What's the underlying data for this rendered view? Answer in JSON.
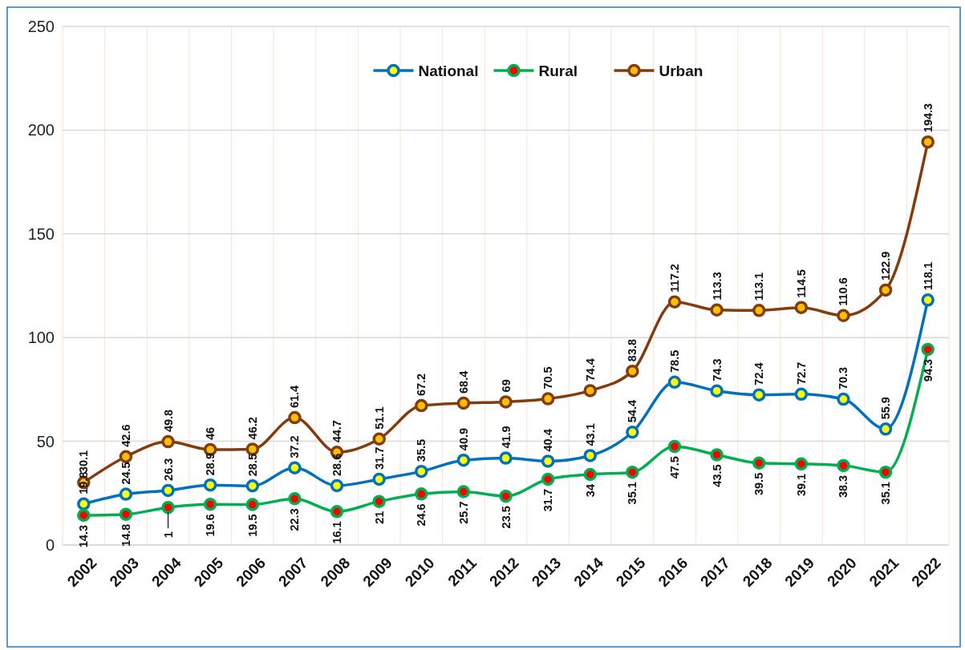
{
  "chart_data": {
    "type": "line",
    "categories": [
      "2002",
      "2003",
      "2004",
      "2005",
      "2006",
      "2007",
      "2008",
      "2009",
      "2010",
      "2011",
      "2012",
      "2013",
      "2014",
      "2015",
      "2016",
      "2017",
      "2018",
      "2019",
      "2020",
      "2021",
      "2022"
    ],
    "series": [
      {
        "name": "National",
        "color": "#0070c0",
        "values": [
          19.8,
          24.5,
          26.3,
          28.9,
          28.5,
          37.2,
          28.6,
          31.7,
          35.5,
          40.9,
          41.9,
          40.4,
          43.1,
          54.4,
          78.5,
          74.3,
          72.4,
          72.7,
          70.3,
          55.9,
          118.1
        ],
        "value_labels": [
          "19.8",
          "24.5",
          "26.3",
          "28.9",
          "28.5",
          "37.2",
          "28.6",
          "31.7",
          "35.5",
          "40.9",
          "41.9",
          "40.4",
          "43.1",
          "54.4",
          "78.5",
          "74.3",
          "72.4",
          "72.7",
          "70.3",
          "55.9",
          "118.1"
        ]
      },
      {
        "name": "Rural",
        "color": "#00b050",
        "values": [
          14.3,
          14.8,
          18.1,
          19.6,
          19.5,
          22.3,
          16.1,
          21,
          24.6,
          25.7,
          23.5,
          31.7,
          34,
          35.1,
          47.5,
          43.5,
          39.5,
          39.1,
          38.3,
          35.1,
          94.3
        ],
        "value_labels": [
          "14.3",
          "14.8",
          null,
          "19.6",
          "19.5",
          "22.3",
          "16.1",
          "21",
          "24.6",
          "25.7",
          "23.5",
          "31.7",
          "34",
          "35.1",
          "47.5",
          "43.5",
          "39.5",
          "39.1",
          "38.3",
          "35.1",
          "94.3"
        ]
      },
      {
        "name": "Urban",
        "color": "#843c0c",
        "values": [
          30.1,
          42.6,
          49.8,
          46,
          46.2,
          61.4,
          44.7,
          51.1,
          67.2,
          68.4,
          69,
          70.5,
          74.4,
          83.8,
          117.2,
          113.3,
          113.1,
          114.5,
          110.6,
          122.9,
          194.3
        ],
        "value_labels": [
          "30.1",
          "42.6",
          "49.8",
          "46",
          "46.2",
          "61.4",
          "44.7",
          "51.1",
          "67.2",
          "68.4",
          "69",
          "70.5",
          "74.4",
          "83.8",
          "117.2",
          "113.3",
          "113.1",
          "114.5",
          "110.6",
          "122.9",
          "194.3"
        ]
      }
    ],
    "ylim": [
      0,
      250
    ],
    "yticks": [
      0,
      50,
      100,
      150,
      200,
      250
    ],
    "annotations": [
      {
        "text": "1",
        "x": "2004",
        "y": 18.1
      }
    ],
    "grid": true,
    "legend": "top",
    "marker": "circle",
    "line_style": "solid"
  }
}
